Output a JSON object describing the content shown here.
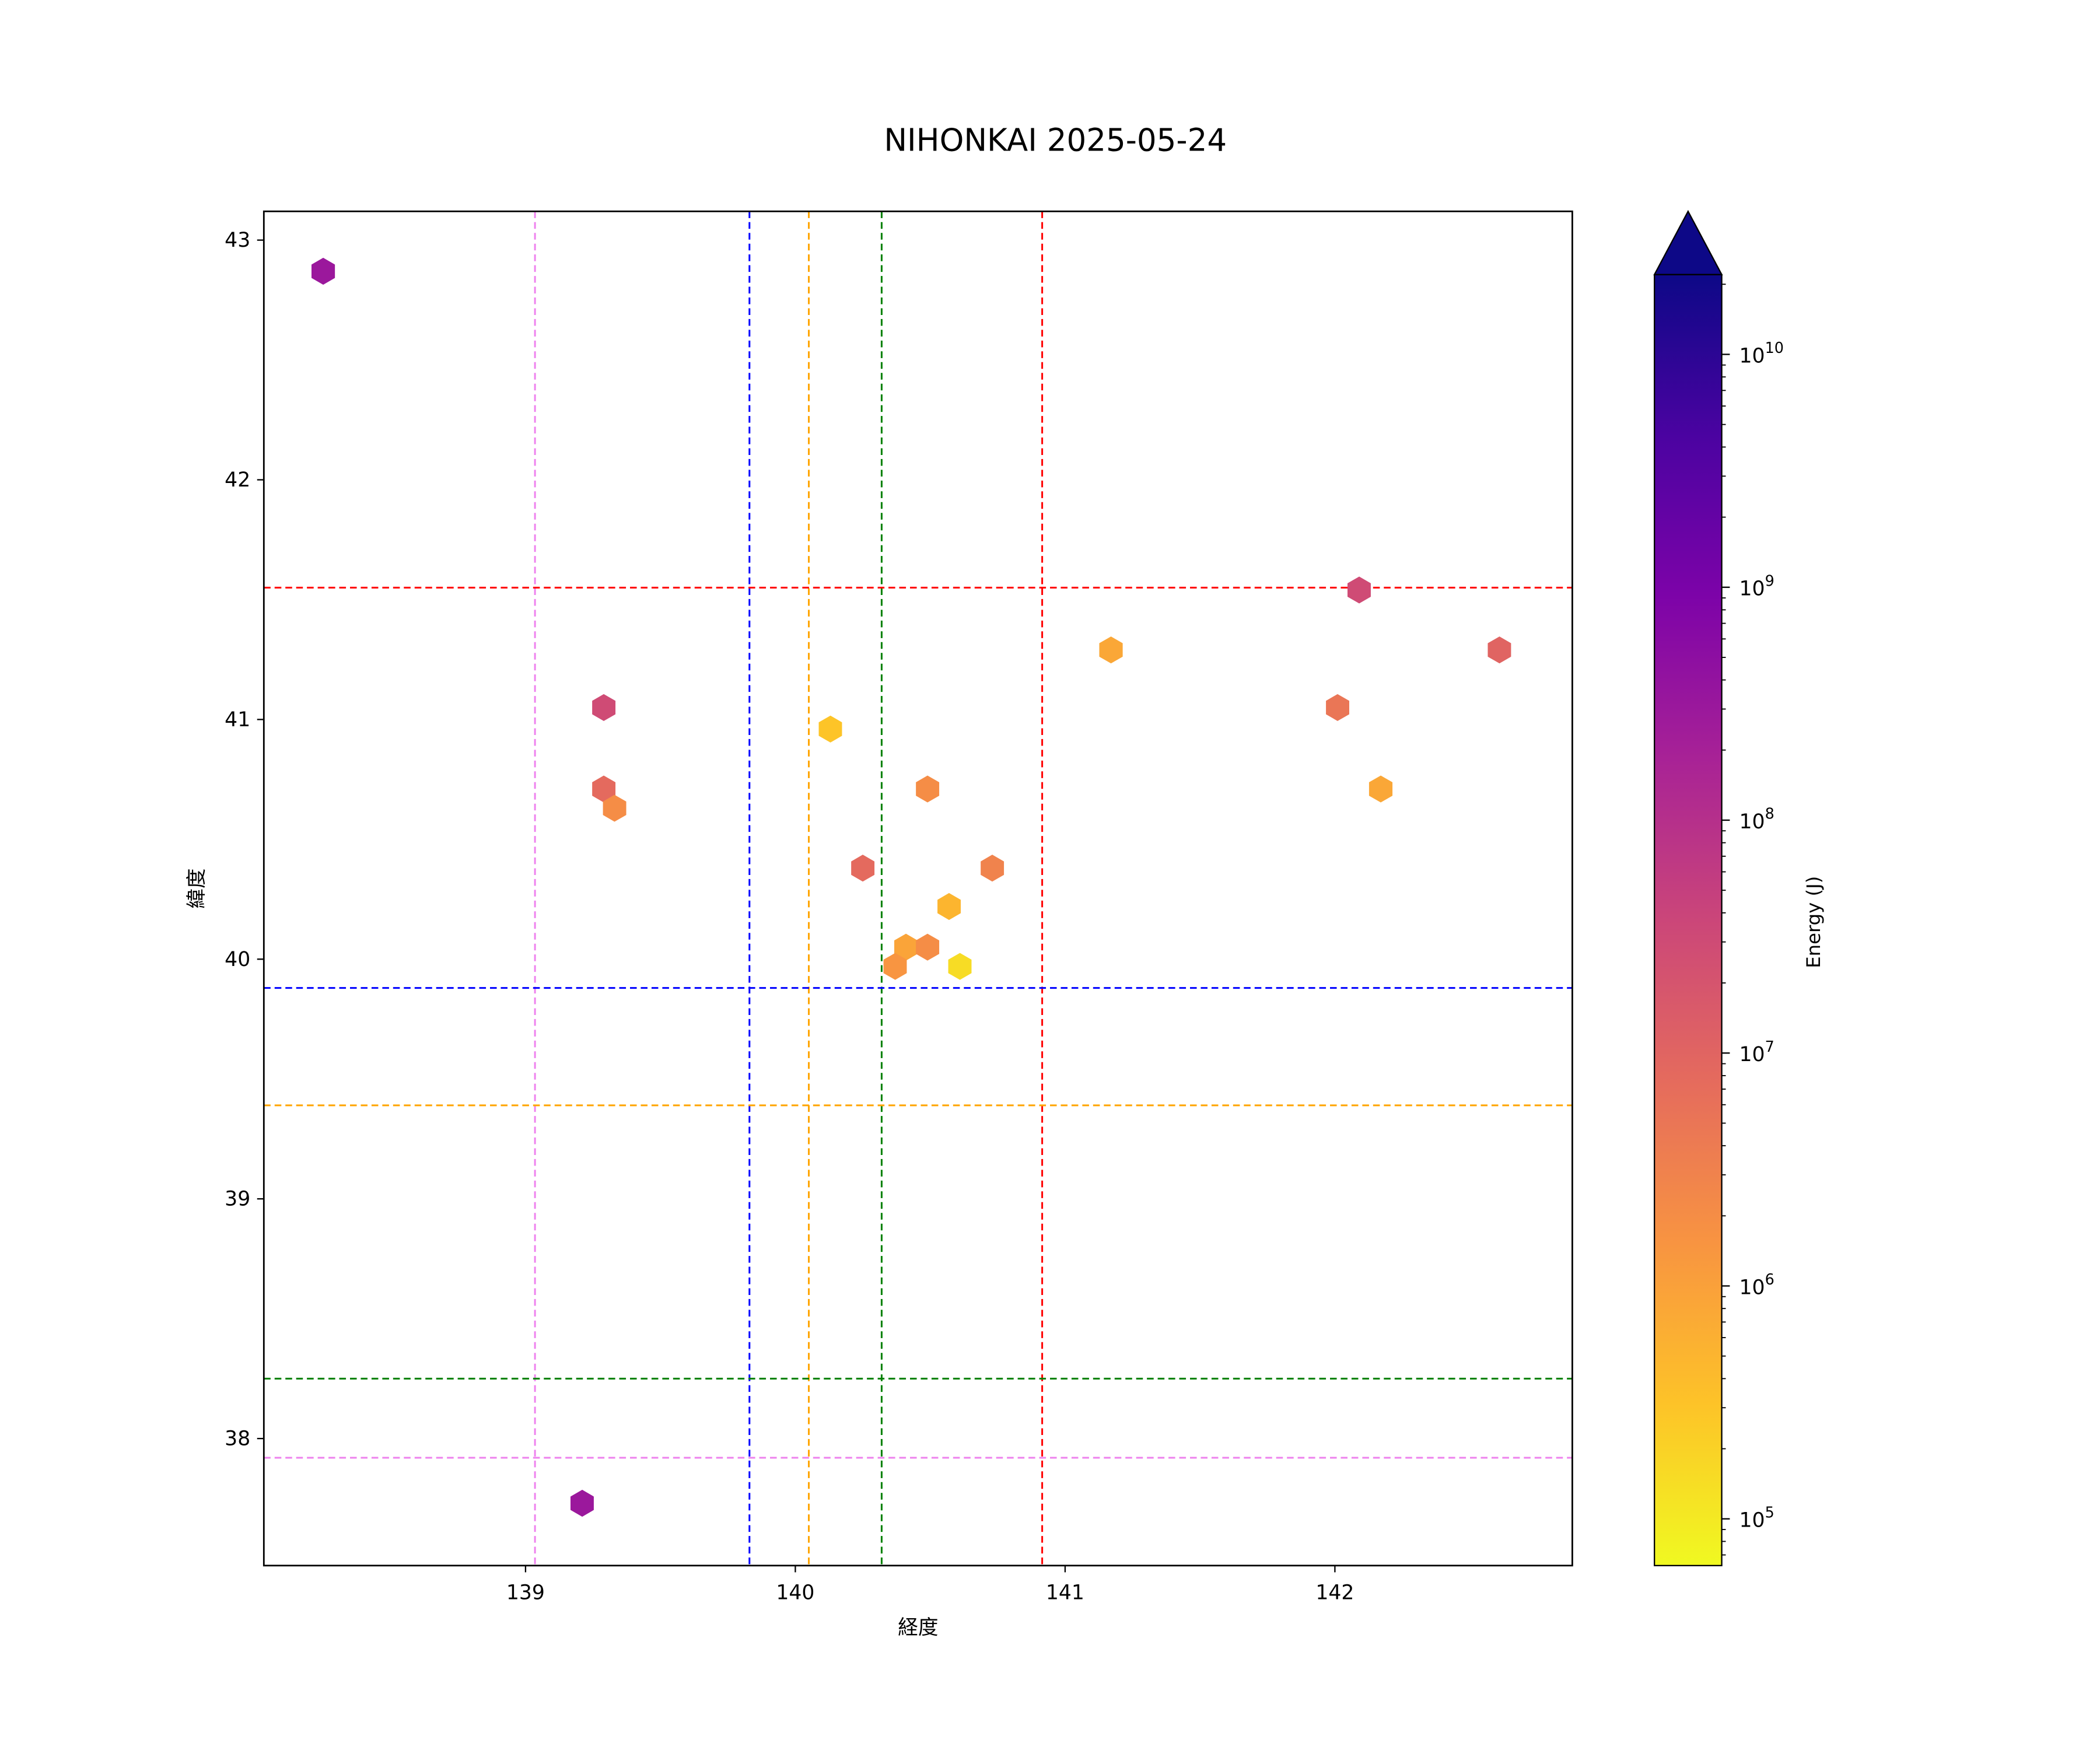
{
  "chart_data": {
    "type": "hexbin",
    "title": "NIHONKAI 2025-05-24",
    "xlabel": "経度",
    "ylabel": "緯度",
    "xlim": [
      138.03,
      142.88
    ],
    "ylim": [
      37.47,
      43.12
    ],
    "xticks": [
      139,
      140,
      141,
      142
    ],
    "yticks": [
      38,
      39,
      40,
      41,
      42,
      43
    ],
    "grid": false,
    "colorbar": {
      "label": "Energy (J)",
      "scale": "log",
      "range": [
        63000,
        22000000000
      ],
      "extend": "max",
      "colormap": "plasma",
      "ticks": [
        {
          "exp": 5,
          "label_base": "10",
          "label_exp": "5"
        },
        {
          "exp": 6,
          "label_base": "10",
          "label_exp": "6"
        },
        {
          "exp": 7,
          "label_base": "10",
          "label_exp": "7"
        },
        {
          "exp": 8,
          "label_base": "10",
          "label_exp": "8"
        },
        {
          "exp": 9,
          "label_base": "10",
          "label_exp": "9"
        },
        {
          "exp": 10,
          "label_base": "10",
          "label_exp": "10"
        }
      ]
    },
    "vlines": [
      {
        "x": 139.035,
        "color": "#ee82ee"
      },
      {
        "x": 139.83,
        "color": "#0000ff"
      },
      {
        "x": 140.05,
        "color": "#ffa500"
      },
      {
        "x": 140.32,
        "color": "#008000"
      },
      {
        "x": 140.915,
        "color": "#ff0000"
      }
    ],
    "hlines": [
      {
        "y": 41.55,
        "color": "#ff0000"
      },
      {
        "y": 39.88,
        "color": "#0000ff"
      },
      {
        "y": 39.39,
        "color": "#ffa500"
      },
      {
        "y": 38.25,
        "color": "#008000"
      },
      {
        "y": 37.92,
        "color": "#ee82ee"
      }
    ],
    "points": [
      {
        "lon": 138.25,
        "lat": 42.87,
        "energy": 300000000
      },
      {
        "lon": 139.29,
        "lat": 41.05,
        "energy": 30000000
      },
      {
        "lon": 139.29,
        "lat": 40.71,
        "energy": 8000000
      },
      {
        "lon": 139.33,
        "lat": 40.63,
        "energy": 2000000
      },
      {
        "lon": 139.21,
        "lat": 37.73,
        "energy": 300000000
      },
      {
        "lon": 140.13,
        "lat": 40.96,
        "energy": 300000
      },
      {
        "lon": 140.25,
        "lat": 40.38,
        "energy": 8000000
      },
      {
        "lon": 140.49,
        "lat": 40.71,
        "energy": 2000000
      },
      {
        "lon": 140.73,
        "lat": 40.38,
        "energy": 3000000
      },
      {
        "lon": 140.57,
        "lat": 40.22,
        "energy": 500000
      },
      {
        "lon": 140.41,
        "lat": 40.05,
        "energy": 900000
      },
      {
        "lon": 140.49,
        "lat": 40.05,
        "energy": 2000000
      },
      {
        "lon": 140.37,
        "lat": 39.97,
        "energy": 1500000
      },
      {
        "lon": 140.61,
        "lat": 39.97,
        "energy": 150000
      },
      {
        "lon": 141.17,
        "lat": 41.29,
        "energy": 800000
      },
      {
        "lon": 142.09,
        "lat": 41.54,
        "energy": 30000000
      },
      {
        "lon": 142.01,
        "lat": 41.05,
        "energy": 5000000
      },
      {
        "lon": 142.61,
        "lat": 41.29,
        "energy": 10000000
      },
      {
        "lon": 142.17,
        "lat": 40.71,
        "energy": 800000
      }
    ]
  }
}
